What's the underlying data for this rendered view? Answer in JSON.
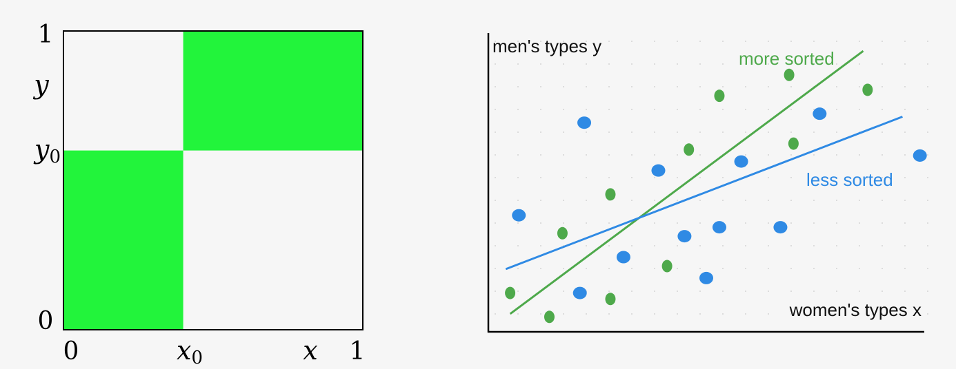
{
  "left_diagram": {
    "corner_label_y_top": "1",
    "corner_label_y_bottom": "0",
    "corner_label_x_left": "0",
    "corner_label_x_right": "1",
    "y_axis_var": "y",
    "x_axis_var": "x",
    "y_threshold_base": "y",
    "y_threshold_sub": "0",
    "x_threshold_base": "x",
    "x_threshold_sub": "0",
    "x0_value": 0.4,
    "y0_value": 0.6,
    "fill_color": "#22f43b"
  },
  "right_diagram": {
    "y_axis_label": "men's types y",
    "x_axis_label": "women's types x",
    "more_sorted_label": "more sorted",
    "less_sorted_label": "less sorted",
    "green_color": "#4ea94b",
    "blue_color": "#2f8ae4",
    "green_points": [
      [
        0.05,
        0.13
      ],
      [
        0.14,
        0.05
      ],
      [
        0.17,
        0.33
      ],
      [
        0.28,
        0.11
      ],
      [
        0.28,
        0.46
      ],
      [
        0.41,
        0.22
      ],
      [
        0.46,
        0.61
      ],
      [
        0.53,
        0.79
      ],
      [
        0.69,
        0.86
      ],
      [
        0.7,
        0.63
      ],
      [
        0.87,
        0.81
      ]
    ],
    "blue_points": [
      [
        0.07,
        0.39
      ],
      [
        0.21,
        0.13
      ],
      [
        0.22,
        0.7
      ],
      [
        0.31,
        0.25
      ],
      [
        0.39,
        0.54
      ],
      [
        0.45,
        0.32
      ],
      [
        0.5,
        0.18
      ],
      [
        0.53,
        0.35
      ],
      [
        0.58,
        0.57
      ],
      [
        0.67,
        0.35
      ],
      [
        0.76,
        0.73
      ],
      [
        0.99,
        0.59
      ]
    ],
    "more_sorted_line": [
      [
        0.05,
        0.06
      ],
      [
        0.86,
        0.94
      ]
    ],
    "less_sorted_line": [
      [
        0.04,
        0.21
      ],
      [
        0.95,
        0.72
      ]
    ]
  }
}
